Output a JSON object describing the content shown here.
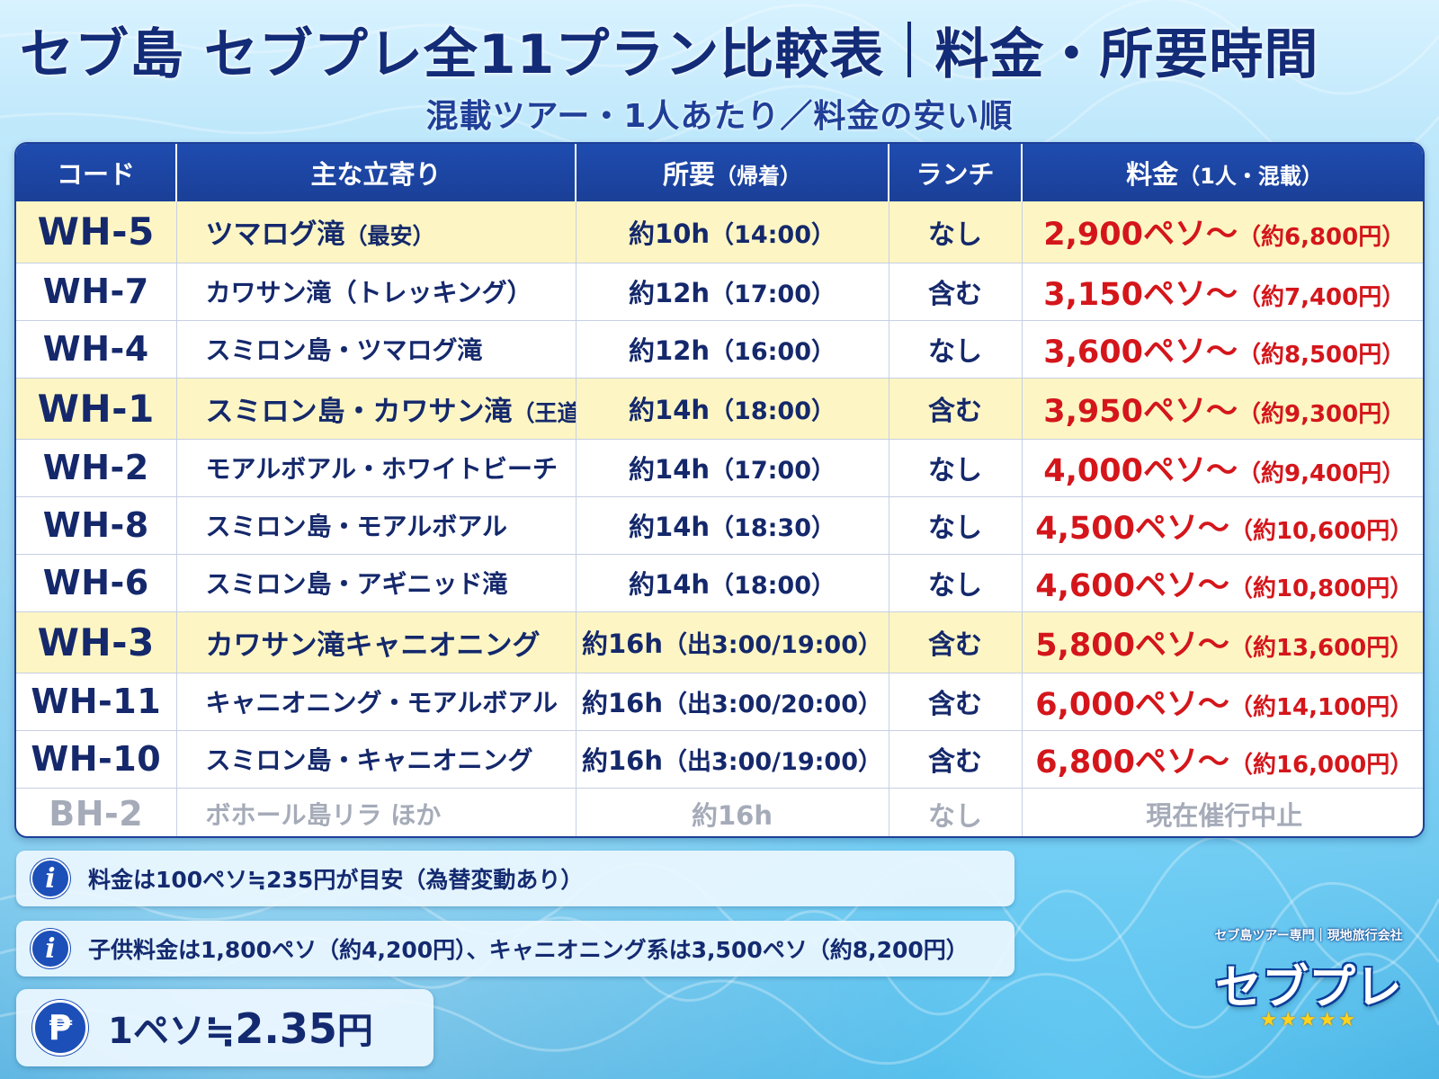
{
  "title": {
    "main": "セブ島 セブプレ全11プラン比較表",
    "right": "料金・所要時間"
  },
  "subtitle": "混載ツアー・1人あたり／料金の安い順",
  "table": {
    "headers": {
      "code": "コード",
      "stops": "主な立寄り",
      "duration": "所要",
      "duration_sub": "（帰着）",
      "lunch": "ランチ",
      "price": "料金",
      "price_sub": "（1人・混載）"
    },
    "rows": [
      {
        "code": "WH-5",
        "stops": "ツマログ滝",
        "note": "（最安）",
        "duration": "約10h",
        "duration_note": "（14:00）",
        "lunch": "なし",
        "price": "2,900ペソ〜",
        "yen": "（約6,800円）",
        "highlight": true
      },
      {
        "code": "WH-7",
        "stops": "カワサン滝（トレッキング）",
        "note": "",
        "duration": "約12h",
        "duration_note": "（17:00）",
        "lunch": "含む",
        "price": "3,150ペソ〜",
        "yen": "（約7,400円）",
        "highlight": false
      },
      {
        "code": "WH-4",
        "stops": "スミロン島・ツマログ滝",
        "note": "",
        "duration": "約12h",
        "duration_note": "（16:00）",
        "lunch": "なし",
        "price": "3,600ペソ〜",
        "yen": "（約8,500円）",
        "highlight": false
      },
      {
        "code": "WH-1",
        "stops": "スミロン島・カワサン滝",
        "note": "（王道）",
        "duration": "約14h",
        "duration_note": "（18:00）",
        "lunch": "含む",
        "price": "3,950ペソ〜",
        "yen": "（約9,300円）",
        "highlight": true
      },
      {
        "code": "WH-2",
        "stops": "モアルボアル・ホワイトビーチ",
        "note": "",
        "duration": "約14h",
        "duration_note": "（17:00）",
        "lunch": "なし",
        "price": "4,000ペソ〜",
        "yen": "（約9,400円）",
        "highlight": false
      },
      {
        "code": "WH-8",
        "stops": "スミロン島・モアルボアル",
        "note": "",
        "duration": "約14h",
        "duration_note": "（18:30）",
        "lunch": "なし",
        "price": "4,500ペソ〜",
        "yen": "（約10,600円）",
        "highlight": false
      },
      {
        "code": "WH-6",
        "stops": "スミロン島・アギニッド滝",
        "note": "",
        "duration": "約14h",
        "duration_note": "（18:00）",
        "lunch": "なし",
        "price": "4,600ペソ〜",
        "yen": "（約10,800円）",
        "highlight": false
      },
      {
        "code": "WH-3",
        "stops": "カワサン滝キャニオニング",
        "note": "",
        "duration": "約16h",
        "duration_note": "（出3:00/19:00）",
        "lunch": "含む",
        "price": "5,800ペソ〜",
        "yen": "（約13,600円）",
        "highlight": true
      },
      {
        "code": "WH-11",
        "stops": "キャニオニング・モアルボアル",
        "note": "",
        "duration": "約16h",
        "duration_note": "（出3:00/20:00）",
        "lunch": "含む",
        "price": "6,000ペソ〜",
        "yen": "（約14,100円）",
        "highlight": false
      },
      {
        "code": "WH-10",
        "stops": "スミロン島・キャニオニング",
        "note": "",
        "duration": "約16h",
        "duration_note": "（出3:00/19:00）",
        "lunch": "含む",
        "price": "6,800ペソ〜",
        "yen": "（約16,000円）",
        "highlight": false
      }
    ],
    "suspended": {
      "code": "BH-2",
      "stops": "ボホール島リラ ほか",
      "duration": "約16h",
      "lunch": "なし",
      "status": "現在催行中止"
    }
  },
  "notes": [
    {
      "icon": "info-icon",
      "text": "料金は100ペソ≒235円が目安（為替変動あり）"
    },
    {
      "icon": "info-icon",
      "text": "子供料金は1,800ペソ（約4,200円）、キャニオニング系は3,500ペソ（約8,200円）"
    }
  ],
  "rate": {
    "icon": "peso-icon",
    "symbol": "₱",
    "prefix": "1ペソ≒",
    "value": "2.35",
    "unit": "円"
  },
  "logo": {
    "tagline": "セブ島ツアー専門｜現地旅行会社",
    "name": "セブプレ",
    "stars": "★★★★★"
  },
  "colors": {
    "navy": "#132c78",
    "header_blue": "#1d3f99",
    "highlight": "#fdf6c4",
    "price_red": "#d4161b",
    "dim": "#a5abb8"
  }
}
